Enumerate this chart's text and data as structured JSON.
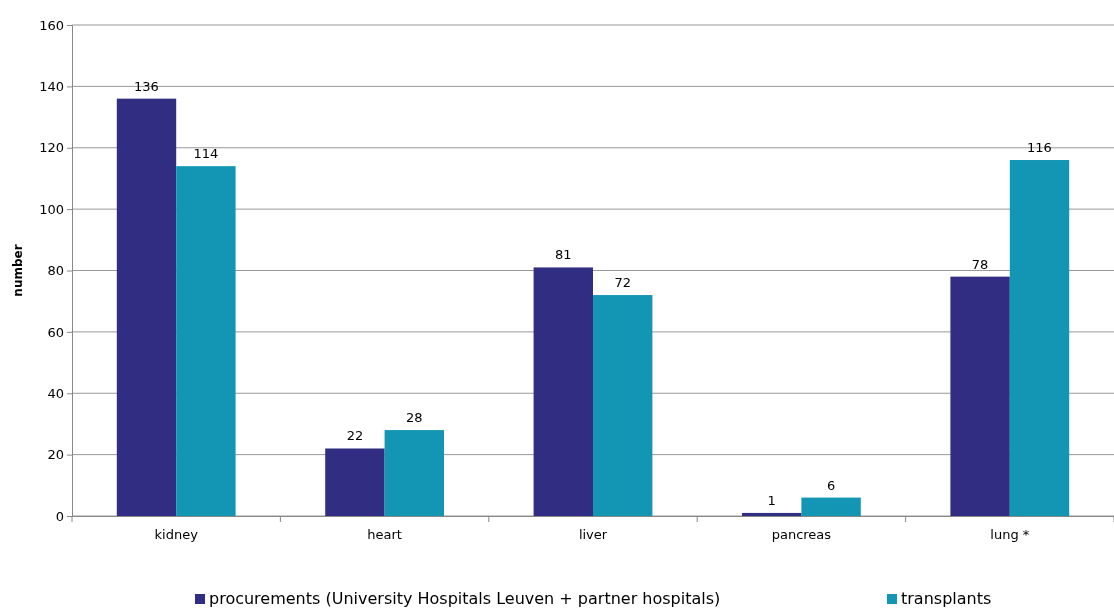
{
  "chart_data": {
    "type": "bar",
    "ylabel": "number",
    "categories": [
      "kidney",
      "heart",
      "liver",
      "pancreas",
      "lung *"
    ],
    "series": [
      {
        "name": "procurements (University Hospitals Leuven + partner hospitals)",
        "color": "#312d82",
        "values": [
          136,
          22,
          81,
          1,
          78
        ]
      },
      {
        "name": "transplants",
        "color": "#1395b4",
        "values": [
          114,
          28,
          72,
          6,
          116
        ]
      }
    ],
    "ylim": [
      0,
      160
    ],
    "yticks": [
      0,
      20,
      40,
      60,
      80,
      100,
      120,
      140,
      160
    ],
    "grid": "y",
    "legend": "bottom",
    "data_labels": true
  }
}
